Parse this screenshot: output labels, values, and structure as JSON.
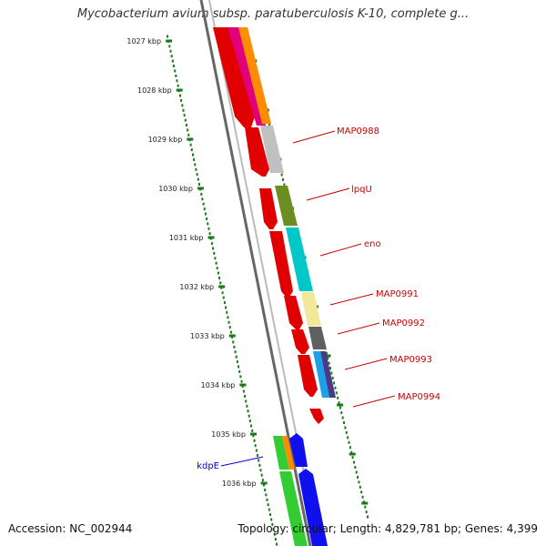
{
  "title": "Mycobacterium avium subsp. paratuberculosis K-10, complete g...",
  "accession": "Accession: NC_002944",
  "topology": "Topology: circular; Length: 4,829,781 bp; Genes: 4,399",
  "colors": {
    "backbone": "#888888",
    "tick": "#1a7a1a",
    "label_red": "#cc0000",
    "label_blue": "#0000cc"
  },
  "ruler_labels": [
    "1027 kbp",
    "1028 kbp",
    "1029 kbp",
    "1030 kbp",
    "1031 kbp",
    "1032 kbp",
    "1033 kbp",
    "1034 kbp",
    "1035 kbp",
    "1036 kbp"
  ],
  "features": [
    {
      "name": "MAP0988",
      "color": "label_red"
    },
    {
      "name": "lpqU",
      "color": "label_red"
    },
    {
      "name": "eno",
      "color": "label_red"
    },
    {
      "name": "MAP0991",
      "color": "label_red"
    },
    {
      "name": "MAP0992",
      "color": "label_red"
    },
    {
      "name": "MAP0993",
      "color": "label_red"
    },
    {
      "name": "MAP0994",
      "color": "label_red"
    },
    {
      "name": "kdpE",
      "color": "label_blue"
    }
  ]
}
